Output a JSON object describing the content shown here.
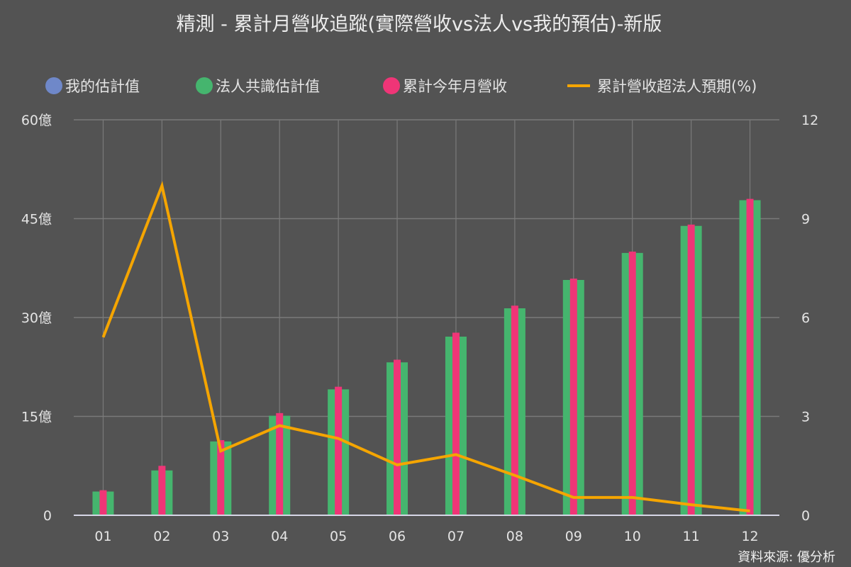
{
  "title": "精測 - 累計月營收追蹤(實際營收vs法人vs我的預估)-新版",
  "legend": [
    {
      "label": "我的估計值",
      "type": "dot",
      "color": "#6f88c9",
      "x": 64
    },
    {
      "label": "法人共識估計值",
      "type": "dot",
      "color": "#45b56e",
      "x": 276
    },
    {
      "label": "累計今年月營收",
      "type": "dot",
      "color": "#ef3577",
      "x": 540
    },
    {
      "label": "累計營收超法人預期(%)",
      "type": "line",
      "color": "#f5a500",
      "x": 800
    }
  ],
  "source": "資料來源: 優分析",
  "colors": {
    "background": "#535353",
    "grid": "#7a7a7a",
    "baseline": "#d6d6e6",
    "my_estimate": "#6f88c9",
    "consensus": "#45b56e",
    "actual": "#ef3577",
    "beat_pct": "#f5a500"
  },
  "chart_data": {
    "type": "bar",
    "title": "精測 - 累計月營收追蹤(實際營收vs法人vs我的預估)-新版",
    "categories": [
      "01",
      "02",
      "03",
      "04",
      "05",
      "06",
      "07",
      "08",
      "09",
      "10",
      "11",
      "12"
    ],
    "xlabel": "",
    "ylabel": "",
    "y_left": {
      "ticks": [
        0,
        15,
        30,
        45,
        60
      ],
      "tick_labels": [
        "0",
        "15億",
        "30億",
        "45億",
        "60億"
      ],
      "ylim": [
        0,
        60
      ],
      "unit": "億"
    },
    "y_right": {
      "ticks": [
        0,
        3,
        6,
        9,
        12
      ],
      "tick_labels": [
        "0",
        "3",
        "6",
        "9",
        "12"
      ],
      "ylim": [
        0,
        12
      ],
      "unit": "%"
    },
    "grid": true,
    "legend_position": "top",
    "series": [
      {
        "name": "我的估計值",
        "type": "bar",
        "axis": "left",
        "color": "#6f88c9",
        "values": [
          0,
          0,
          0,
          0,
          0,
          0,
          0,
          0,
          0,
          0,
          0,
          0
        ]
      },
      {
        "name": "法人共識估計值",
        "type": "bar",
        "axis": "left",
        "color": "#45b56e",
        "values": [
          3.6,
          6.8,
          11.2,
          15.1,
          19.1,
          23.2,
          27.1,
          31.4,
          35.7,
          39.8,
          43.9,
          47.8
        ]
      },
      {
        "name": "累計今年月營收",
        "type": "bar",
        "axis": "left",
        "color": "#ef3577",
        "values": [
          3.8,
          7.5,
          11.4,
          15.5,
          19.5,
          23.6,
          27.7,
          31.8,
          35.9,
          40.0,
          44.1,
          48.0
        ]
      },
      {
        "name": "累計營收超法人預期(%)",
        "type": "line",
        "axis": "right",
        "color": "#f5a500",
        "values": [
          5.4,
          10.0,
          1.95,
          2.72,
          2.33,
          1.53,
          1.84,
          1.21,
          0.54,
          0.54,
          0.32,
          0.13
        ]
      }
    ]
  }
}
